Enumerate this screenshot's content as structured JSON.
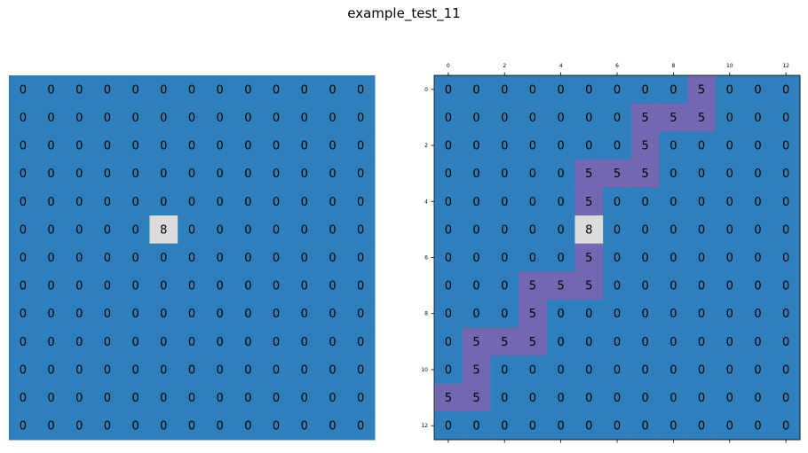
{
  "title": "example_test_11",
  "colors": {
    "0": "#2f7fbc",
    "5": "#7467b2",
    "8": "#dcdcdc"
  },
  "chart_data": [
    {
      "type": "heatmap",
      "name": "input-grid",
      "rows": 13,
      "cols": 13,
      "show_ticks": false,
      "grid": [
        [
          0,
          0,
          0,
          0,
          0,
          0,
          0,
          0,
          0,
          0,
          0,
          0,
          0
        ],
        [
          0,
          0,
          0,
          0,
          0,
          0,
          0,
          0,
          0,
          0,
          0,
          0,
          0
        ],
        [
          0,
          0,
          0,
          0,
          0,
          0,
          0,
          0,
          0,
          0,
          0,
          0,
          0
        ],
        [
          0,
          0,
          0,
          0,
          0,
          0,
          0,
          0,
          0,
          0,
          0,
          0,
          0
        ],
        [
          0,
          0,
          0,
          0,
          0,
          0,
          0,
          0,
          0,
          0,
          0,
          0,
          0
        ],
        [
          0,
          0,
          0,
          0,
          0,
          8,
          0,
          0,
          0,
          0,
          0,
          0,
          0
        ],
        [
          0,
          0,
          0,
          0,
          0,
          0,
          0,
          0,
          0,
          0,
          0,
          0,
          0
        ],
        [
          0,
          0,
          0,
          0,
          0,
          0,
          0,
          0,
          0,
          0,
          0,
          0,
          0
        ],
        [
          0,
          0,
          0,
          0,
          0,
          0,
          0,
          0,
          0,
          0,
          0,
          0,
          0
        ],
        [
          0,
          0,
          0,
          0,
          0,
          0,
          0,
          0,
          0,
          0,
          0,
          0,
          0
        ],
        [
          0,
          0,
          0,
          0,
          0,
          0,
          0,
          0,
          0,
          0,
          0,
          0,
          0
        ],
        [
          0,
          0,
          0,
          0,
          0,
          0,
          0,
          0,
          0,
          0,
          0,
          0,
          0
        ],
        [
          0,
          0,
          0,
          0,
          0,
          0,
          0,
          0,
          0,
          0,
          0,
          0,
          0
        ]
      ]
    },
    {
      "type": "heatmap",
      "name": "output-grid",
      "rows": 13,
      "cols": 13,
      "show_ticks": true,
      "x_ticks": [
        0,
        2,
        4,
        6,
        8,
        10,
        12
      ],
      "y_ticks": [
        0,
        2,
        4,
        6,
        8,
        10,
        12
      ],
      "grid": [
        [
          0,
          0,
          0,
          0,
          0,
          0,
          0,
          0,
          0,
          5,
          0,
          0,
          0
        ],
        [
          0,
          0,
          0,
          0,
          0,
          0,
          0,
          5,
          5,
          5,
          0,
          0,
          0
        ],
        [
          0,
          0,
          0,
          0,
          0,
          0,
          0,
          5,
          0,
          0,
          0,
          0,
          0
        ],
        [
          0,
          0,
          0,
          0,
          0,
          5,
          5,
          5,
          0,
          0,
          0,
          0,
          0
        ],
        [
          0,
          0,
          0,
          0,
          0,
          5,
          0,
          0,
          0,
          0,
          0,
          0,
          0
        ],
        [
          0,
          0,
          0,
          0,
          0,
          8,
          0,
          0,
          0,
          0,
          0,
          0,
          0
        ],
        [
          0,
          0,
          0,
          0,
          0,
          5,
          0,
          0,
          0,
          0,
          0,
          0,
          0
        ],
        [
          0,
          0,
          0,
          5,
          5,
          5,
          0,
          0,
          0,
          0,
          0,
          0,
          0
        ],
        [
          0,
          0,
          0,
          5,
          0,
          0,
          0,
          0,
          0,
          0,
          0,
          0,
          0
        ],
        [
          0,
          5,
          5,
          5,
          0,
          0,
          0,
          0,
          0,
          0,
          0,
          0,
          0
        ],
        [
          0,
          5,
          0,
          0,
          0,
          0,
          0,
          0,
          0,
          0,
          0,
          0,
          0
        ],
        [
          5,
          5,
          0,
          0,
          0,
          0,
          0,
          0,
          0,
          0,
          0,
          0,
          0
        ],
        [
          0,
          0,
          0,
          0,
          0,
          0,
          0,
          0,
          0,
          0,
          0,
          0,
          0
        ]
      ]
    }
  ]
}
